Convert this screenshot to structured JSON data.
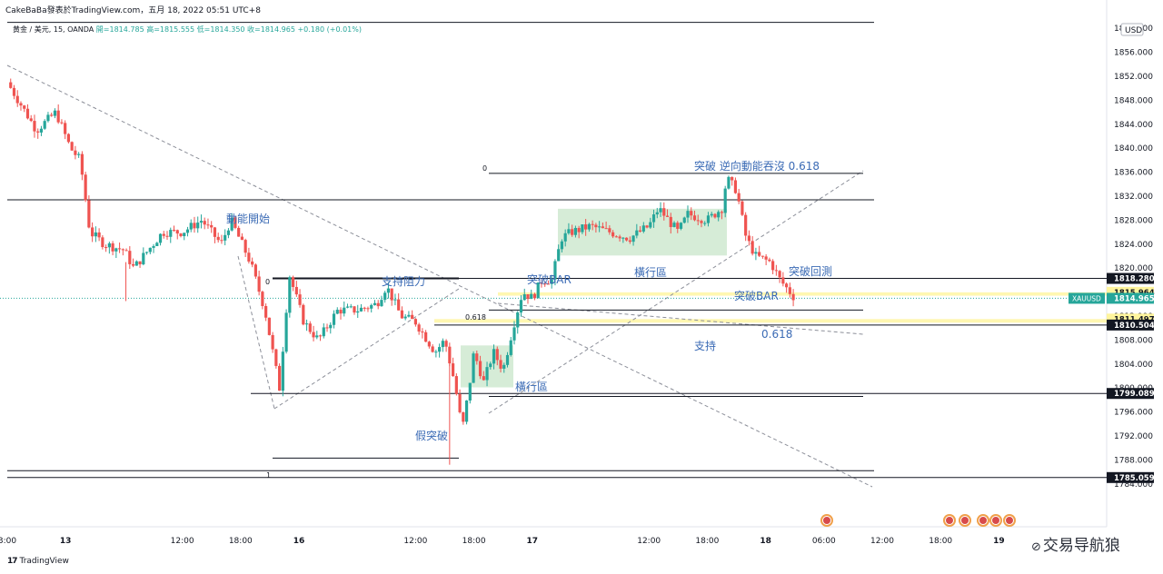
{
  "header": {
    "title": "CakeBaBa發表於TradingView.com，五月 18, 2022 05:51 UTC+8",
    "symbol": "黄金 / 美元, 15, OANDA",
    "ohlc": "開=1814.785 高=1815.555 低=1814.350 收=1814.965 +0.180 (+0.01%)"
  },
  "brand": {
    "logo": "17",
    "text": "TradingView"
  },
  "watermark": {
    "text": "交易导航狼"
  },
  "chart_data": {
    "type": "candlestick",
    "currency": "USD",
    "y_range": [
      1782,
      1862
    ],
    "y_ticks": [
      1784,
      1788,
      1792,
      1796,
      1800,
      1804,
      1808,
      1812,
      1816,
      1820,
      1824,
      1828,
      1832,
      1836,
      1840,
      1844,
      1848,
      1852,
      1856,
      1860
    ],
    "x_ticks": [
      {
        "label": "3:00",
        "t": 0
      },
      {
        "label": "13",
        "t": 6
      },
      {
        "label": "12:00",
        "t": 18
      },
      {
        "label": "18:00",
        "t": 24
      },
      {
        "label": "16",
        "t": 30
      },
      {
        "label": "12:00",
        "t": 42
      },
      {
        "label": "18:00",
        "t": 48
      },
      {
        "label": "17",
        "t": 54
      },
      {
        "label": "12:00",
        "t": 66
      },
      {
        "label": "18:00",
        "t": 72
      },
      {
        "label": "18",
        "t": 78
      },
      {
        "label": "06:00",
        "t": 84
      },
      {
        "label": "12:00",
        "t": 90
      },
      {
        "label": "18:00",
        "t": 96
      },
      {
        "label": "19",
        "t": 102
      }
    ],
    "anchors": [
      [
        0,
        1851
      ],
      [
        1.5,
        1847
      ],
      [
        3,
        1843
      ],
      [
        5,
        1846
      ],
      [
        6.5,
        1840
      ],
      [
        7.5,
        1838
      ],
      [
        8.5,
        1826
      ],
      [
        10,
        1824
      ],
      [
        12,
        1823
      ],
      [
        13,
        1820
      ],
      [
        14,
        1822
      ],
      [
        16,
        1826
      ],
      [
        18,
        1826
      ],
      [
        20,
        1828
      ],
      [
        22,
        1824
      ],
      [
        23,
        1828
      ],
      [
        25,
        1821
      ],
      [
        26.5,
        1813
      ],
      [
        28,
        1800
      ],
      [
        29,
        1819
      ],
      [
        30.5,
        1811
      ],
      [
        32,
        1808
      ],
      [
        34,
        1813
      ],
      [
        36,
        1813
      ],
      [
        38,
        1814
      ],
      [
        39,
        1817
      ],
      [
        40.5,
        1812
      ],
      [
        42,
        1811
      ],
      [
        44,
        1806
      ],
      [
        45,
        1808
      ],
      [
        46,
        1801
      ],
      [
        46.8,
        1793
      ],
      [
        47.5,
        1800
      ],
      [
        48,
        1806
      ],
      [
        49,
        1801
      ],
      [
        50,
        1806
      ],
      [
        51,
        1803
      ],
      [
        52,
        1810
      ],
      [
        53,
        1816
      ],
      [
        54,
        1815
      ],
      [
        55,
        1818
      ],
      [
        56,
        1818
      ],
      [
        57,
        1825
      ],
      [
        58,
        1826
      ],
      [
        60,
        1827
      ],
      [
        62,
        1826
      ],
      [
        64,
        1825
      ],
      [
        66,
        1827
      ],
      [
        67,
        1830
      ],
      [
        69,
        1826
      ],
      [
        70,
        1829
      ],
      [
        72,
        1828
      ],
      [
        73.5,
        1830
      ],
      [
        74,
        1835
      ],
      [
        75,
        1833
      ],
      [
        76,
        1825
      ],
      [
        77,
        1822
      ],
      [
        78.5,
        1821
      ],
      [
        79.5,
        1818
      ],
      [
        80.5,
        1816
      ],
      [
        81,
        1815
      ]
    ],
    "price_labels": [
      {
        "value": "1818.280",
        "price": 1818.28,
        "style": "dark"
      },
      {
        "value": "1815.964",
        "price": 1815.964,
        "style": "yellow"
      },
      {
        "value": "1814.965",
        "price": 1814.965,
        "style": "teal",
        "symbol": "XAUUSD"
      },
      {
        "value": "1811.497",
        "price": 1811.497,
        "style": "yellow"
      },
      {
        "value": "1810.504",
        "price": 1810.504,
        "style": "dark"
      },
      {
        "value": "1799.089",
        "price": 1799.089,
        "style": "dark"
      },
      {
        "value": "1785.059",
        "price": 1785.059,
        "style": "dark"
      }
    ],
    "annotations": [
      {
        "text": "動能開始"
      },
      {
        "text": "支持阻力"
      },
      {
        "text": "突破BAR"
      },
      {
        "text": "橫行區"
      },
      {
        "text": "突破 逆向動能吞沒 0.618"
      },
      {
        "text": "突破回測"
      },
      {
        "text": "突破BAR"
      },
      {
        "text": "支持"
      },
      {
        "text": "橫行區"
      },
      {
        "text": "假突破"
      },
      {
        "text": "0.618"
      }
    ],
    "fib_labels": [
      "0",
      "0.618",
      "1",
      "0",
      "0.618"
    ],
    "event_badges": 6
  }
}
